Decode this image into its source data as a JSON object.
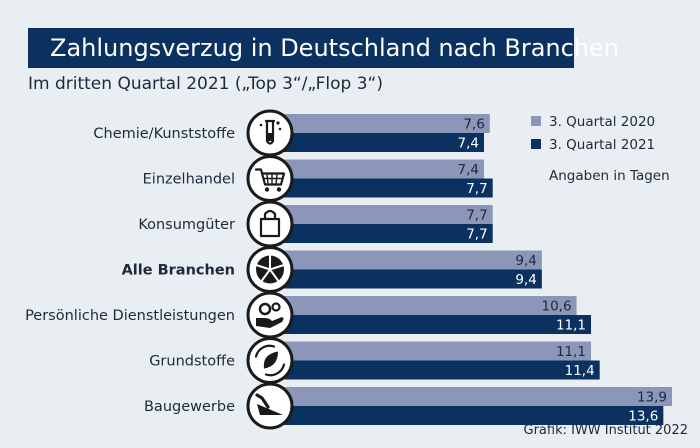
{
  "chart_data": {
    "type": "bar",
    "orientation": "horizontal",
    "title": "Zahlungsverzug in Deutschland nach Branchen",
    "subtitle": "Im dritten Quartal 2021 („Top 3“/„Flop 3“)",
    "categories": [
      "Chemie/Kunststoffe",
      "Einzelhandel",
      "Konsumgüter",
      "Alle Branchen",
      "Persönliche Dienstleistungen",
      "Grundstoffe",
      "Baugewerbe"
    ],
    "category_icons": [
      "flask-icon",
      "shopping-cart-icon",
      "shopping-bag-icon",
      "pie-chart-icon",
      "gears-hand-icon",
      "leaf-cycle-icon",
      "trowel-icon"
    ],
    "highlight_category": "Alle Branchen",
    "series": [
      {
        "name": "3. Quartal 2020",
        "color": "#8b96b8",
        "values": [
          7.6,
          7.4,
          7.7,
          9.4,
          10.6,
          11.1,
          13.9
        ],
        "labels": [
          "7,6",
          "7,4",
          "7,7",
          "9,4",
          "10,6",
          "11,1",
          "13,9"
        ]
      },
      {
        "name": "3. Quartal 2021",
        "color": "#0a3160",
        "values": [
          7.4,
          7.7,
          7.7,
          9.4,
          11.1,
          11.4,
          13.6
        ],
        "labels": [
          "7,4",
          "7,7",
          "7,7",
          "9,4",
          "11,1",
          "11,4",
          "13,6"
        ]
      }
    ],
    "xlim": [
      0,
      13.9
    ],
    "grid": false,
    "legend_position": "top-right",
    "unit_note": "Angaben in Tagen",
    "source": "Grafik: IWW Institut 2022"
  }
}
